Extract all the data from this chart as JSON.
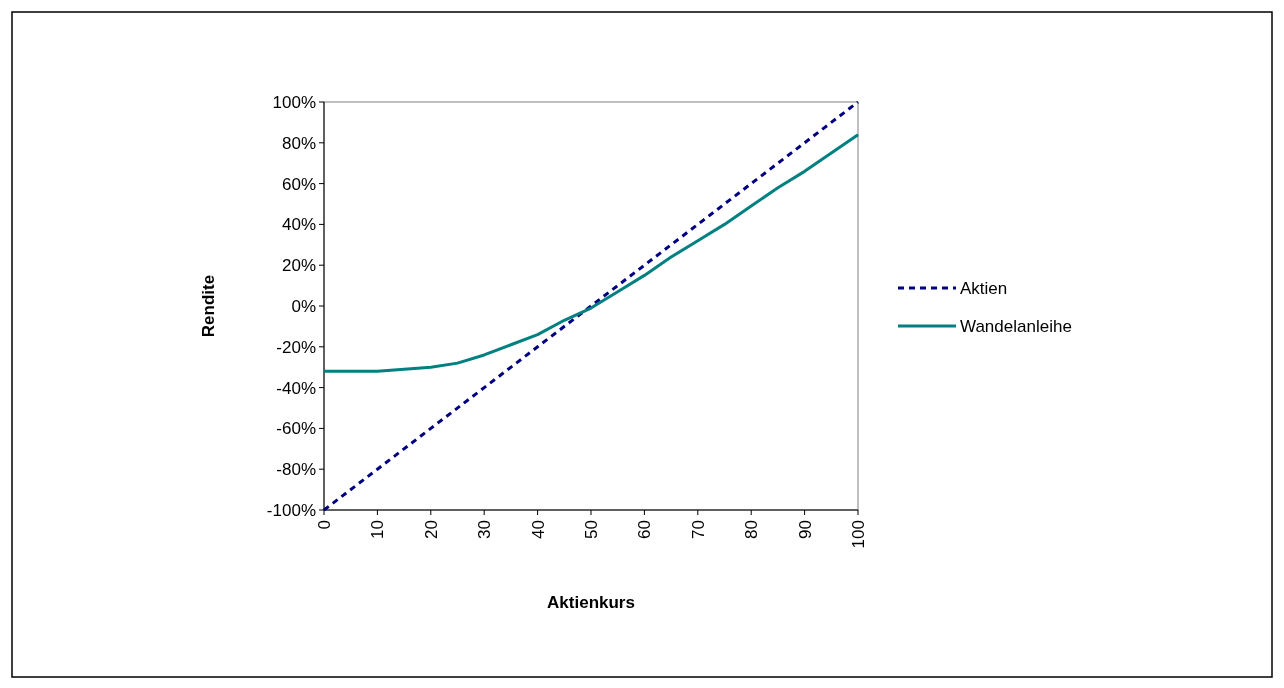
{
  "chart_data": {
    "type": "line",
    "xlabel": "Aktienkurs",
    "ylabel": "Rendite",
    "xlim": [
      0,
      100
    ],
    "xticks": [
      0,
      10,
      20,
      30,
      40,
      50,
      60,
      70,
      80,
      90,
      100
    ],
    "ylim": [
      -100,
      100
    ],
    "yticks": [
      {
        "value": -100,
        "label": "-100%"
      },
      {
        "value": -80,
        "label": "-80%"
      },
      {
        "value": -60,
        "label": "-60%"
      },
      {
        "value": -40,
        "label": "-40%"
      },
      {
        "value": -20,
        "label": "-20%"
      },
      {
        "value": 0,
        "label": "0%"
      },
      {
        "value": 20,
        "label": "20%"
      },
      {
        "value": 40,
        "label": "40%"
      },
      {
        "value": 60,
        "label": "60%"
      },
      {
        "value": 80,
        "label": "80%"
      },
      {
        "value": 100,
        "label": "100%"
      }
    ],
    "grid": false,
    "legend": "right",
    "marker": "none",
    "series": [
      {
        "name": "Aktien",
        "color": "#000080",
        "line_style": "dashed",
        "x": [
          0,
          10,
          20,
          30,
          40,
          50,
          60,
          70,
          80,
          90,
          100
        ],
        "values": [
          -100,
          -80,
          -60,
          -40,
          -20,
          0,
          20,
          40,
          60,
          80,
          100
        ]
      },
      {
        "name": "Wandelanleihe",
        "color": "#008080",
        "line_style": "solid",
        "x": [
          0,
          10,
          15,
          20,
          25,
          30,
          35,
          40,
          45,
          50,
          55,
          60,
          65,
          70,
          75,
          80,
          85,
          90,
          95,
          100
        ],
        "values": [
          -32,
          -32,
          -31,
          -30,
          -28,
          -24,
          -19,
          -14,
          -7,
          -1,
          7,
          15,
          24,
          32,
          40,
          49,
          58,
          66,
          75,
          84
        ]
      }
    ]
  }
}
